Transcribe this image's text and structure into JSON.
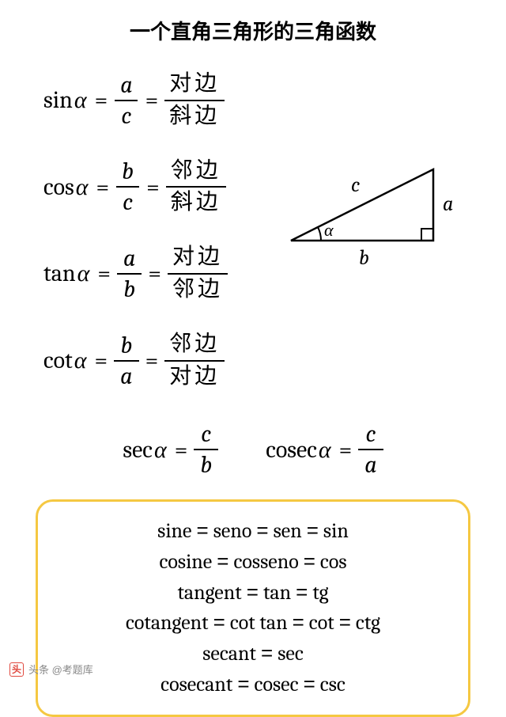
{
  "title": "一个直角三角形的三角函数",
  "formulas": [
    {
      "func": "sin",
      "arg": "α",
      "num1": "a",
      "den1": "c",
      "num2": "对边",
      "den2": "斜边"
    },
    {
      "func": "cos",
      "arg": "α",
      "num1": "b",
      "den1": "c",
      "num2": "邻边",
      "den2": "斜边"
    },
    {
      "func": "tan",
      "arg": "α",
      "num1": "a",
      "den1": "b",
      "num2": "对边",
      "den2": "邻边"
    },
    {
      "func": "cot",
      "arg": "α",
      "num1": "b",
      "den1": "a",
      "num2": "邻边",
      "den2": "对边"
    }
  ],
  "secondary": {
    "sec": {
      "func": "sec",
      "arg": "α",
      "num": "c",
      "den": "b"
    },
    "cosec": {
      "func": "cosec",
      "arg": "α",
      "num": "c",
      "den": "a"
    }
  },
  "triangle": {
    "color": "#000000",
    "label_a": "a",
    "label_b": "b",
    "label_c": "c",
    "label_alpha": "α"
  },
  "box": {
    "border_color": "#f5c842",
    "lines": [
      [
        "sine",
        "seno",
        "sen",
        "sin"
      ],
      [
        "cosine",
        "cosseno",
        "cos"
      ],
      [
        "tangent",
        "tan",
        "tg"
      ],
      [
        "cotangent",
        "cot tan",
        "cot",
        "ctg"
      ],
      [
        "secant",
        "sec"
      ],
      [
        "cosecant",
        "cosec",
        "csc"
      ]
    ]
  },
  "footer": {
    "icon_text": "头",
    "text": "头条 @考题库"
  },
  "eq_symbol": "="
}
